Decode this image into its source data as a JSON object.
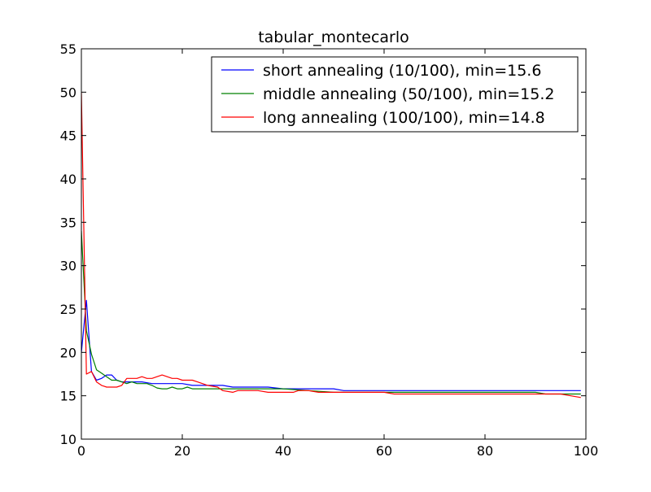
{
  "chart_data": {
    "type": "line",
    "title": "tabular_montecarlo",
    "xlabel": "",
    "ylabel": "",
    "xlim": [
      0,
      100
    ],
    "ylim": [
      10,
      55
    ],
    "x_ticks": [
      0,
      20,
      40,
      60,
      80,
      100
    ],
    "y_ticks": [
      10,
      15,
      20,
      25,
      30,
      35,
      40,
      45,
      50,
      55
    ],
    "grid": false,
    "legend_position": "top-right",
    "series": [
      {
        "name": "short annealing (10/100), min=15.6",
        "color": "#0000ff",
        "x": [
          0,
          1,
          2,
          3,
          4,
          5,
          6,
          7,
          8,
          9,
          10,
          12,
          14,
          16,
          18,
          20,
          22,
          25,
          28,
          30,
          33,
          37,
          40,
          43,
          46,
          50,
          52,
          55,
          60,
          65,
          70,
          75,
          80,
          85,
          90,
          95,
          99
        ],
        "y": [
          20.0,
          26.0,
          17.8,
          16.8,
          17.0,
          17.4,
          17.4,
          16.8,
          16.6,
          16.6,
          16.6,
          16.6,
          16.4,
          16.4,
          16.4,
          16.4,
          16.2,
          16.2,
          16.2,
          16.0,
          16.0,
          16.0,
          15.8,
          15.8,
          15.8,
          15.8,
          15.6,
          15.6,
          15.6,
          15.6,
          15.6,
          15.6,
          15.6,
          15.6,
          15.6,
          15.6,
          15.6
        ]
      },
      {
        "name": "middle annealing (50/100), min=15.2",
        "color": "#008000",
        "x": [
          0,
          1,
          2,
          3,
          4,
          5,
          6,
          7,
          8,
          9,
          10,
          11,
          12,
          13,
          14,
          15,
          16,
          17,
          18,
          19,
          20,
          21,
          22,
          25,
          28,
          30,
          35,
          38,
          40,
          45,
          50,
          55,
          60,
          62,
          70,
          80,
          90,
          92,
          95,
          99
        ],
        "y": [
          34.0,
          22.5,
          19.8,
          18.0,
          17.6,
          17.2,
          16.8,
          16.8,
          16.6,
          16.4,
          16.6,
          16.4,
          16.4,
          16.4,
          16.2,
          15.9,
          15.8,
          15.8,
          16.0,
          15.8,
          15.8,
          16.0,
          15.8,
          15.8,
          15.8,
          15.8,
          15.8,
          15.8,
          15.8,
          15.6,
          15.4,
          15.4,
          15.4,
          15.4,
          15.4,
          15.4,
          15.4,
          15.2,
          15.2,
          15.2
        ]
      },
      {
        "name": "long annealing (100/100), min=14.8",
        "color": "#ff0000",
        "x": [
          0,
          1,
          2,
          3,
          4,
          5,
          6,
          7,
          8,
          9,
          10,
          11,
          12,
          13,
          14,
          15,
          16,
          17,
          18,
          19,
          20,
          21,
          22,
          23,
          24,
          25,
          27,
          28,
          30,
          31,
          33,
          35,
          37,
          40,
          42,
          43,
          45,
          47,
          50,
          55,
          60,
          62,
          65,
          70,
          80,
          90,
          95,
          97,
          99
        ],
        "y": [
          50.0,
          17.5,
          17.8,
          16.6,
          16.2,
          16.0,
          16.0,
          16.0,
          16.2,
          17.0,
          17.0,
          17.0,
          17.2,
          17.0,
          17.0,
          17.2,
          17.4,
          17.2,
          17.0,
          17.0,
          16.8,
          16.8,
          16.8,
          16.6,
          16.4,
          16.2,
          16.0,
          15.6,
          15.4,
          15.6,
          15.6,
          15.6,
          15.4,
          15.4,
          15.4,
          15.6,
          15.6,
          15.4,
          15.4,
          15.4,
          15.4,
          15.2,
          15.2,
          15.2,
          15.2,
          15.2,
          15.2,
          15.0,
          14.8
        ]
      }
    ]
  }
}
